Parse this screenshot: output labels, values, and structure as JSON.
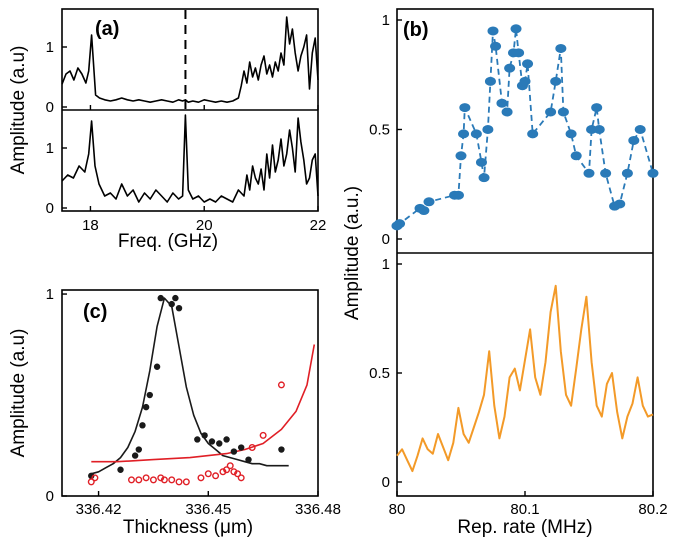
{
  "chart_data": [
    {
      "id": "a",
      "type": "line",
      "panel_label": "(a)",
      "xlabel": "Freq. (GHz)",
      "ylabel": "Amplitude (a.u)",
      "xlim": [
        17.5,
        22
      ],
      "xticks": [
        "18",
        "20",
        "22"
      ],
      "xtick_values": [
        18,
        20,
        22
      ],
      "marker_x": 19.67,
      "subplots": [
        {
          "name": "top",
          "ylim": [
            0,
            1.6
          ],
          "yticks": [
            "0",
            "1"
          ],
          "ytick_values": [
            0,
            1
          ],
          "x": [
            17.5,
            17.57,
            17.64,
            17.71,
            17.78,
            17.85,
            17.92,
            17.97,
            18.02,
            18.09,
            18.16,
            18.25,
            18.35,
            18.45,
            18.55,
            18.65,
            18.75,
            18.85,
            18.95,
            19.05,
            19.15,
            19.25,
            19.35,
            19.45,
            19.55,
            19.62,
            19.67,
            19.72,
            19.8,
            19.9,
            20.0,
            20.1,
            20.2,
            20.3,
            20.4,
            20.5,
            20.6,
            20.65,
            20.7,
            20.75,
            20.8,
            20.85,
            20.9,
            20.95,
            21.0,
            21.05,
            21.1,
            21.15,
            21.2,
            21.25,
            21.3,
            21.35,
            21.4,
            21.45,
            21.5,
            21.55,
            21.6,
            21.65,
            21.7,
            21.75,
            21.8,
            21.85,
            21.9,
            21.95,
            22.0
          ],
          "y": [
            0.38,
            0.55,
            0.6,
            0.45,
            0.65,
            0.55,
            0.4,
            0.6,
            1.2,
            0.2,
            0.15,
            0.12,
            0.1,
            0.12,
            0.15,
            0.12,
            0.1,
            0.12,
            0.1,
            0.08,
            0.1,
            0.12,
            0.1,
            0.08,
            0.12,
            0.1,
            0.12,
            0.08,
            0.1,
            0.08,
            0.12,
            0.1,
            0.08,
            0.1,
            0.08,
            0.1,
            0.15,
            0.35,
            0.6,
            0.4,
            0.75,
            0.5,
            0.65,
            0.45,
            0.7,
            0.85,
            0.55,
            0.7,
            0.5,
            0.75,
            0.6,
            0.9,
            0.7,
            1.5,
            1.05,
            1.3,
            0.9,
            0.6,
            0.85,
            1.0,
            1.2,
            0.3,
            0.9,
            1.15,
            0.45
          ]
        },
        {
          "name": "bottom",
          "ylim": [
            0,
            1.6
          ],
          "yticks": [
            "0",
            "1"
          ],
          "ytick_values": [
            0,
            1
          ],
          "x": [
            17.5,
            17.6,
            17.7,
            17.8,
            17.9,
            17.97,
            18.02,
            18.08,
            18.15,
            18.25,
            18.35,
            18.45,
            18.55,
            18.65,
            18.75,
            18.85,
            18.95,
            19.05,
            19.15,
            19.25,
            19.35,
            19.45,
            19.55,
            19.62,
            19.67,
            19.72,
            19.8,
            19.9,
            20.0,
            20.1,
            20.2,
            20.3,
            20.4,
            20.5,
            20.6,
            20.7,
            20.75,
            20.8,
            20.85,
            20.9,
            20.95,
            21.0,
            21.05,
            21.1,
            21.15,
            21.2,
            21.25,
            21.3,
            21.35,
            21.4,
            21.45,
            21.5,
            21.55,
            21.6,
            21.65,
            21.7,
            21.75,
            21.8,
            21.85,
            21.9,
            21.95,
            22.0
          ],
          "y": [
            0.45,
            0.55,
            0.5,
            0.7,
            0.6,
            0.9,
            1.45,
            0.7,
            0.4,
            0.2,
            0.25,
            0.15,
            0.4,
            0.2,
            0.3,
            0.1,
            0.25,
            0.15,
            0.3,
            0.2,
            0.1,
            0.25,
            0.15,
            0.2,
            1.55,
            0.3,
            0.15,
            0.2,
            0.1,
            0.15,
            0.1,
            0.2,
            0.15,
            0.1,
            0.3,
            0.2,
            0.55,
            0.3,
            0.7,
            0.5,
            0.4,
            0.65,
            0.3,
            0.9,
            0.5,
            1.05,
            0.6,
            0.8,
            1.15,
            0.7,
            0.9,
            1.3,
            1.0,
            0.6,
            1.5,
            1.1,
            0.8,
            0.4,
            0.5,
            0.8,
            0.9,
            0.2
          ]
        }
      ]
    },
    {
      "id": "b",
      "type": "line",
      "panel_label": "(b)",
      "xlabel": "Rep. rate (MHz)",
      "ylabel": "Amplitude (a.u.)",
      "xlim": [
        80,
        80.2
      ],
      "xticks": [
        "80",
        "80.1",
        "80.2"
      ],
      "xtick_values": [
        80,
        80.1,
        80.2
      ],
      "subplots": [
        {
          "name": "measured",
          "style": "dashed-markers",
          "color": "#2a7ab8",
          "ylim": [
            0,
            1
          ],
          "yticks": [
            "0",
            "0.5",
            "1"
          ],
          "ytick_values": [
            0,
            0.5,
            1
          ],
          "x": [
            80.0,
            80.002,
            80.018,
            80.021,
            80.025,
            80.045,
            80.048,
            80.05,
            80.052,
            80.053,
            80.062,
            80.066,
            80.068,
            80.071,
            80.073,
            80.075,
            80.077,
            80.082,
            80.086,
            80.088,
            80.091,
            80.093,
            80.095,
            80.098,
            80.1,
            80.102,
            80.106,
            80.12,
            80.124,
            80.128,
            80.13,
            80.136,
            80.14,
            80.15,
            80.152,
            80.156,
            80.158,
            80.163,
            80.17,
            80.174,
            80.18,
            80.185,
            80.19,
            80.2
          ],
          "y": [
            0.06,
            0.07,
            0.14,
            0.13,
            0.17,
            0.2,
            0.2,
            0.38,
            0.48,
            0.6,
            0.48,
            0.35,
            0.28,
            0.5,
            0.72,
            0.95,
            0.88,
            0.62,
            0.58,
            0.78,
            0.85,
            0.96,
            0.85,
            0.7,
            0.72,
            0.8,
            0.48,
            0.58,
            0.72,
            0.87,
            0.58,
            0.48,
            0.38,
            0.3,
            0.5,
            0.6,
            0.5,
            0.3,
            0.15,
            0.16,
            0.3,
            0.45,
            0.5,
            0.3
          ]
        },
        {
          "name": "simulated",
          "style": "line",
          "color": "#f39a28",
          "ylim": [
            0,
            1
          ],
          "yticks": [
            "0",
            "0.5",
            "1"
          ],
          "ytick_values": [
            0,
            0.5,
            1
          ],
          "x": [
            80.0,
            80.004,
            80.008,
            80.012,
            80.016,
            80.02,
            80.024,
            80.028,
            80.032,
            80.036,
            80.04,
            80.044,
            80.048,
            80.052,
            80.056,
            80.06,
            80.064,
            80.068,
            80.072,
            80.076,
            80.08,
            80.084,
            80.088,
            80.092,
            80.096,
            80.1,
            80.104,
            80.108,
            80.112,
            80.116,
            80.12,
            80.124,
            80.128,
            80.132,
            80.136,
            80.14,
            80.144,
            80.148,
            80.152,
            80.156,
            80.16,
            80.164,
            80.168,
            80.172,
            80.176,
            80.18,
            80.184,
            80.188,
            80.192,
            80.196,
            80.2
          ],
          "y": [
            0.12,
            0.15,
            0.1,
            0.05,
            0.12,
            0.2,
            0.15,
            0.13,
            0.22,
            0.16,
            0.1,
            0.18,
            0.34,
            0.22,
            0.18,
            0.25,
            0.32,
            0.4,
            0.6,
            0.35,
            0.2,
            0.3,
            0.48,
            0.52,
            0.42,
            0.56,
            0.7,
            0.48,
            0.4,
            0.55,
            0.78,
            0.9,
            0.6,
            0.4,
            0.35,
            0.52,
            0.7,
            0.85,
            0.55,
            0.35,
            0.3,
            0.45,
            0.5,
            0.32,
            0.2,
            0.3,
            0.36,
            0.48,
            0.35,
            0.3,
            0.31
          ]
        }
      ]
    },
    {
      "id": "c",
      "type": "scatter",
      "panel_label": "(c)",
      "xlabel": "Thickness (μm)",
      "ylabel": "Amplitude (a.u)",
      "xlim": [
        336.41,
        336.48
      ],
      "ylim": [
        0,
        1.02
      ],
      "xticks": [
        "336.42",
        "336.45",
        "336.48"
      ],
      "xtick_values": [
        336.42,
        336.45,
        336.48
      ],
      "yticks": [
        "0",
        "1"
      ],
      "ytick_values": [
        0,
        1
      ],
      "series": [
        {
          "marker": "filled",
          "color": "#1a1a1a",
          "x": [
            336.418,
            336.426,
            336.43,
            336.431,
            336.432,
            336.433,
            336.434,
            336.436,
            336.437,
            336.44,
            336.441,
            336.442,
            336.447,
            336.449,
            336.451,
            336.453,
            336.455,
            336.457,
            336.459,
            336.461,
            336.47
          ],
          "y": [
            0.1,
            0.13,
            0.2,
            0.23,
            0.35,
            0.44,
            0.5,
            0.64,
            0.98,
            0.95,
            0.98,
            0.93,
            0.28,
            0.3,
            0.27,
            0.26,
            0.28,
            0.22,
            0.24,
            0.18,
            0.23
          ]
        },
        {
          "marker": "open",
          "color": "#e01f26",
          "x": [
            336.418,
            336.419,
            336.429,
            336.431,
            336.433,
            336.435,
            336.437,
            336.438,
            336.44,
            336.442,
            336.444,
            336.448,
            336.45,
            336.452,
            336.454,
            336.455,
            336.456,
            336.457,
            336.458,
            336.459,
            336.462,
            336.465,
            336.47
          ],
          "y": [
            0.07,
            0.09,
            0.08,
            0.08,
            0.09,
            0.08,
            0.09,
            0.08,
            0.08,
            0.07,
            0.07,
            0.09,
            0.11,
            0.1,
            0.12,
            0.13,
            0.15,
            0.12,
            0.11,
            0.09,
            0.24,
            0.3,
            0.55
          ]
        }
      ],
      "fits": [
        {
          "color": "#1a1a1a",
          "x": [
            336.418,
            336.42,
            336.422,
            336.424,
            336.426,
            336.428,
            336.43,
            336.432,
            336.434,
            336.436,
            336.438,
            336.44,
            336.442,
            336.444,
            336.446,
            336.448,
            336.45,
            336.452,
            336.454,
            336.456,
            336.458,
            336.46,
            336.462,
            336.464,
            336.466,
            336.468,
            336.47,
            336.472
          ],
          "y": [
            0.11,
            0.12,
            0.14,
            0.16,
            0.19,
            0.24,
            0.32,
            0.44,
            0.62,
            0.84,
            0.98,
            0.94,
            0.74,
            0.54,
            0.4,
            0.31,
            0.26,
            0.23,
            0.2,
            0.19,
            0.18,
            0.17,
            0.16,
            0.16,
            0.15,
            0.15,
            0.15,
            0.15
          ]
        },
        {
          "color": "#e01f26",
          "x": [
            336.418,
            336.425,
            336.43,
            336.435,
            336.44,
            336.445,
            336.45,
            336.455,
            336.46,
            336.465,
            336.47,
            336.474,
            336.477,
            336.479
          ],
          "y": [
            0.17,
            0.17,
            0.175,
            0.18,
            0.185,
            0.19,
            0.2,
            0.21,
            0.23,
            0.26,
            0.33,
            0.42,
            0.55,
            0.75
          ]
        }
      ]
    }
  ]
}
